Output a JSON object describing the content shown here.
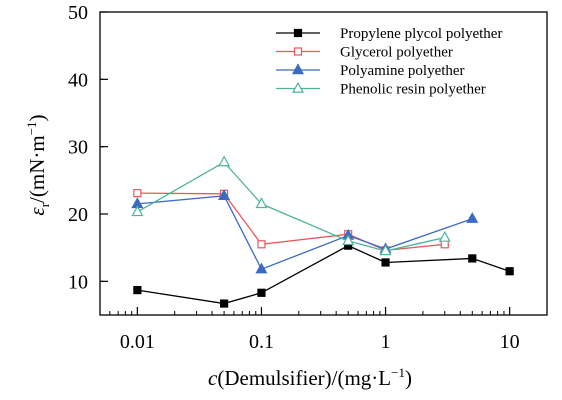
{
  "chart_data": {
    "type": "line",
    "xscale": "log",
    "xlim": [
      0.005,
      20
    ],
    "ylim": [
      5,
      50
    ],
    "x_ticks": [
      {
        "value": 0.01,
        "label": "0.01"
      },
      {
        "value": 0.1,
        "label": "0.1"
      },
      {
        "value": 1,
        "label": "1"
      },
      {
        "value": 10,
        "label": "10"
      }
    ],
    "y_ticks": [
      {
        "value": 10,
        "label": "10"
      },
      {
        "value": 20,
        "label": "20"
      },
      {
        "value": 30,
        "label": "30"
      },
      {
        "value": 40,
        "label": "40"
      },
      {
        "value": 50,
        "label": "50"
      }
    ],
    "xlabel": {
      "italic": "c",
      "main": "(Demulsifier)/(mg·L",
      "sup": "−1",
      "tail": ")"
    },
    "ylabel": {
      "italic": "ε",
      "sub": "r",
      "main": "/(mN·m",
      "sup": "−1",
      "tail": ")"
    },
    "grid": false,
    "legend_position": "top-right",
    "series": [
      {
        "name": "Propylene plycol polyether",
        "color": "#000000",
        "marker": "square-filled",
        "points": [
          [
            0.01,
            8.7
          ],
          [
            0.05,
            6.7
          ],
          [
            0.1,
            8.3
          ],
          [
            0.5,
            15.3
          ],
          [
            1,
            12.8
          ],
          [
            5,
            13.4
          ],
          [
            10,
            11.5
          ]
        ]
      },
      {
        "name": "Glycerol polyether",
        "color": "#e8585c",
        "marker": "square-open",
        "points": [
          [
            0.01,
            23.1
          ],
          [
            0.05,
            23.0
          ],
          [
            0.1,
            15.5
          ],
          [
            0.5,
            17.0
          ],
          [
            1,
            14.6
          ],
          [
            3,
            15.5
          ]
        ]
      },
      {
        "name": "Polyamine polyether",
        "color": "#3a6ac4",
        "marker": "triangle-filled",
        "points": [
          [
            0.01,
            21.5
          ],
          [
            0.05,
            22.7
          ],
          [
            0.1,
            11.8
          ],
          [
            0.5,
            16.8
          ],
          [
            1,
            14.8
          ],
          [
            5,
            19.3
          ]
        ]
      },
      {
        "name": "Phenolic resin polyether",
        "color": "#4fb39a",
        "marker": "triangle-open",
        "points": [
          [
            0.01,
            20.3
          ],
          [
            0.05,
            27.7
          ],
          [
            0.1,
            21.5
          ],
          [
            0.5,
            16.0
          ],
          [
            1,
            14.5
          ],
          [
            3,
            16.5
          ]
        ]
      }
    ]
  }
}
